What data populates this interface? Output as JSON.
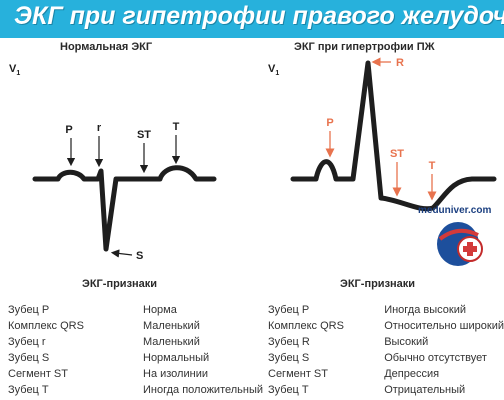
{
  "header": {
    "title": "ЭКГ при гипетрофии правого желудочка"
  },
  "panels": {
    "normal": {
      "title": "Нормальная ЭКГ",
      "lead": "V",
      "lead_sub": "1",
      "labels": {
        "p": "P",
        "r": "r",
        "st": "ST",
        "t": "T",
        "s": "S"
      }
    },
    "rvh": {
      "title": "ЭКГ при гипертрофии ПЖ",
      "lead": "V",
      "lead_sub": "1",
      "labels": {
        "p": "P",
        "r": "R",
        "st": "ST",
        "t": "T"
      }
    }
  },
  "signs": {
    "normal_title": "ЭКГ-признаки",
    "rvh_title": "ЭКГ-признаки",
    "normal_rows": [
      {
        "name": "Зубец P",
        "value": "Норма"
      },
      {
        "name": "Комплекс QRS",
        "value": "Маленький"
      },
      {
        "name": "Зубец r",
        "value": "Маленький"
      },
      {
        "name": "Зубец S",
        "value": "Нормальный"
      },
      {
        "name": "Сегмент ST",
        "value": "На изолинии"
      },
      {
        "name": "Зубец T",
        "value": "Иногда положительный"
      }
    ],
    "rvh_rows": [
      {
        "name": "Зубец P",
        "value": "Иногда высокий"
      },
      {
        "name": "Комплекс QRS",
        "value": "Относительно широкий"
      },
      {
        "name": "Зубец R",
        "value": "Высокий"
      },
      {
        "name": "Зубец S",
        "value": "Обычно отсутствует"
      },
      {
        "name": "Сегмент ST",
        "value": "Депрессия"
      },
      {
        "name": "Зубец T",
        "value": "Отрицательный"
      }
    ]
  },
  "watermark": {
    "text": "meduniver.com",
    "icon": "medical-cross-logo-icon"
  },
  "colors": {
    "banner": "#27b1dc",
    "trace": "#1e1e1e",
    "annotation": "#e8734e"
  }
}
